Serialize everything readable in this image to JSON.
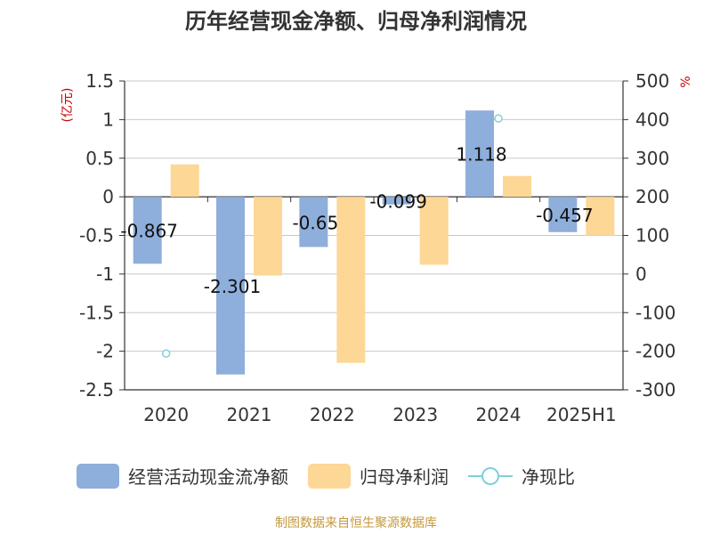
{
  "chart_data": {
    "type": "bar",
    "title": "历年经营现金净额、归母净利润情况",
    "categories": [
      "2020",
      "2021",
      "2022",
      "2023",
      "2024",
      "2025H1"
    ],
    "left_unit": "(亿元)",
    "right_unit": "%",
    "left_axis": {
      "ylim": [
        -2.5,
        1.5
      ],
      "ticks": [
        1.5,
        1,
        0.5,
        0,
        -0.5,
        -1,
        -1.5,
        -2,
        -2.5
      ],
      "tick_labels": [
        "1.5",
        "1",
        "0.5",
        "0",
        "-0.5",
        "-1",
        "-1.5",
        "-2",
        "-2.5"
      ]
    },
    "right_axis": {
      "ylim": [
        -300,
        500
      ],
      "ticks": [
        500,
        400,
        300,
        200,
        100,
        0,
        -100,
        -200,
        -300
      ],
      "tick_labels": [
        "500",
        "400",
        "300",
        "200",
        "100",
        "0",
        "-100",
        "-200",
        "-300"
      ]
    },
    "series": [
      {
        "name": "经营活动现金流净额",
        "type": "bar",
        "axis": "left",
        "color": "#8eaedb",
        "values": [
          -0.867,
          -2.301,
          -0.65,
          -0.099,
          1.118,
          -0.457
        ],
        "labels": [
          "-0.867",
          "-2.301",
          "-0.65",
          "-0.099",
          "1.118",
          "-0.457"
        ]
      },
      {
        "name": "归母净利润",
        "type": "bar",
        "axis": "left",
        "color": "#fdd796",
        "values": [
          0.42,
          -1.02,
          -2.15,
          -0.88,
          0.27,
          -0.5
        ]
      },
      {
        "name": "净现比",
        "type": "scatter",
        "axis": "right",
        "color": "#7fd0dc",
        "values": [
          -206,
          null,
          null,
          null,
          403,
          null
        ]
      }
    ],
    "grid": true,
    "legend_position": "bottom"
  },
  "source_text": "制图数据来自恒生聚源数据库"
}
